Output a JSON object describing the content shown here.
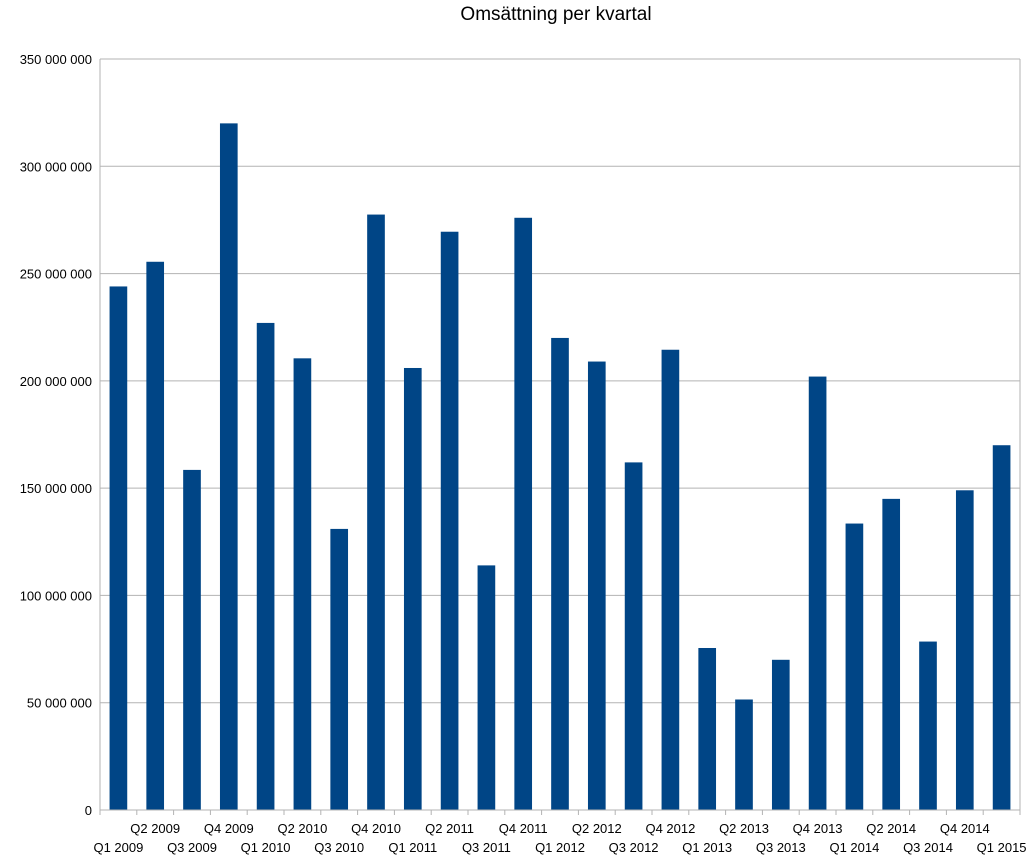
{
  "chart_data": {
    "type": "bar",
    "title": "Omsättning per kvartal",
    "xlabel": "",
    "ylabel": "",
    "ylim": [
      0,
      350000000
    ],
    "ytick_step": 50000000,
    "ytick_labels": [
      "0",
      "50 000 000",
      "100 000 000",
      "150 000 000",
      "200 000 000",
      "250 000 000",
      "300 000 000",
      "350 000 000"
    ],
    "grid": true,
    "legend": "none",
    "bar_color": "#004586",
    "categories": [
      "Q1 2009",
      "Q2 2009",
      "Q3 2009",
      "Q4 2009",
      "Q1 2010",
      "Q2 2010",
      "Q3 2010",
      "Q4 2010",
      "Q1 2011",
      "Q2 2011",
      "Q3 2011",
      "Q4 2011",
      "Q1 2012",
      "Q2 2012",
      "Q3 2012",
      "Q4 2012",
      "Q1 2013",
      "Q2 2013",
      "Q3 2013",
      "Q4 2013",
      "Q1 2014",
      "Q2 2014",
      "Q3 2014",
      "Q4 2014",
      "Q1 2015"
    ],
    "values": [
      244000000,
      255500000,
      158500000,
      320000000,
      227000000,
      210500000,
      131000000,
      277500000,
      206000000,
      269500000,
      114000000,
      276000000,
      220000000,
      209000000,
      162000000,
      214500000,
      75500000,
      51500000,
      70000000,
      202000000,
      133500000,
      145000000,
      78500000,
      149000000,
      170000000
    ]
  }
}
